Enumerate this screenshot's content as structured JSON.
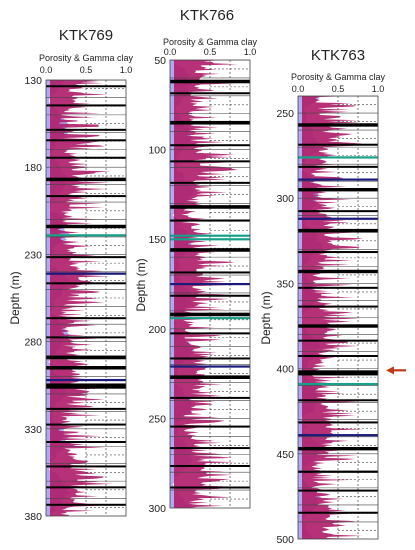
{
  "colors": {
    "porosity": "#b01f6b",
    "gamma_clay": "#9c9cf0",
    "coal": "#000000",
    "navy_marker": "#1a1a7a",
    "green_marker": "#17a08a",
    "grid": "#444444",
    "arrow": "#c0391b"
  },
  "chart_data": [
    {
      "type": "area",
      "title": "KTK769",
      "xlabel": "Porosity & Gamma clay",
      "ylabel": "Depth (m)",
      "xlim": [
        0.0,
        1.0
      ],
      "xticks": [
        "0.0",
        "0.5",
        "1.0"
      ],
      "ylim": [
        130,
        380
      ],
      "yticks": [
        "130",
        "180",
        "230",
        "280",
        "330",
        "380"
      ],
      "grid": true,
      "series": [],
      "coal_depths": [
        133,
        144,
        158,
        164,
        174,
        186,
        196,
        213,
        231,
        246,
        266,
        277,
        288,
        294,
        304,
        318,
        327,
        337,
        351,
        363,
        373
      ],
      "coal_thickness_m": [
        1,
        1,
        1,
        1,
        1,
        2,
        1,
        2,
        1,
        1,
        1,
        1,
        2,
        2,
        3,
        1,
        1,
        1,
        1,
        1,
        1
      ],
      "markers": [
        {
          "depth": 219,
          "color": "green"
        },
        {
          "depth": 241,
          "color": "navy"
        },
        {
          "depth": 302,
          "color": "navy"
        }
      ]
    },
    {
      "type": "area",
      "title": "KTK766",
      "xlabel": "Porosity & Gamma clay",
      "ylabel": "",
      "xlim": [
        0.0,
        1.0
      ],
      "xticks": [
        "0.0",
        "0.5",
        "1.0"
      ],
      "ylim": [
        50,
        300
      ],
      "yticks": [
        "50",
        "100",
        "150",
        "200",
        "250",
        "300"
      ],
      "grid": true,
      "series": [],
      "coal_depths": [
        61,
        68,
        84,
        97,
        106,
        118,
        131,
        139,
        155,
        168,
        181,
        191,
        202,
        216,
        226,
        238,
        254,
        266,
        276,
        288
      ],
      "coal_thickness_m": [
        2,
        1,
        2,
        1,
        1,
        1,
        2,
        1,
        2,
        1,
        1,
        2,
        1,
        1,
        2,
        1,
        1,
        1,
        1,
        1
      ],
      "markers": [
        {
          "depth": 148,
          "color": "green"
        },
        {
          "depth": 150,
          "color": "green"
        },
        {
          "depth": 175,
          "color": "navy"
        },
        {
          "depth": 221,
          "color": "navy"
        },
        {
          "depth": 194,
          "color": "green"
        }
      ]
    },
    {
      "type": "area",
      "title": "KTK763",
      "xlabel": "Porosity & Gamma clay",
      "ylabel": "",
      "xlim": [
        0.0,
        1.0
      ],
      "xticks": [
        "0.0",
        "0.5",
        "1.0"
      ],
      "ylim": [
        240,
        500
      ],
      "yticks": [
        "250",
        "300",
        "350",
        "400",
        "450",
        "500"
      ],
      "grid": true,
      "series": [],
      "coal_depths": [
        256,
        268,
        281,
        294,
        307,
        318,
        331,
        342,
        352,
        363,
        374,
        383,
        392,
        401,
        418,
        431,
        446,
        460,
        471,
        484
      ],
      "coal_thickness_m": [
        2,
        1,
        1,
        2,
        1,
        2,
        1,
        2,
        1,
        1,
        2,
        1,
        1,
        3,
        1,
        1,
        2,
        1,
        1,
        1
      ],
      "markers": [
        {
          "depth": 276,
          "color": "green"
        },
        {
          "depth": 289,
          "color": "navy"
        },
        {
          "depth": 312,
          "color": "navy"
        },
        {
          "depth": 439,
          "color": "navy"
        },
        {
          "depth": 409,
          "color": "green"
        }
      ],
      "arrow_depth": 401
    }
  ]
}
